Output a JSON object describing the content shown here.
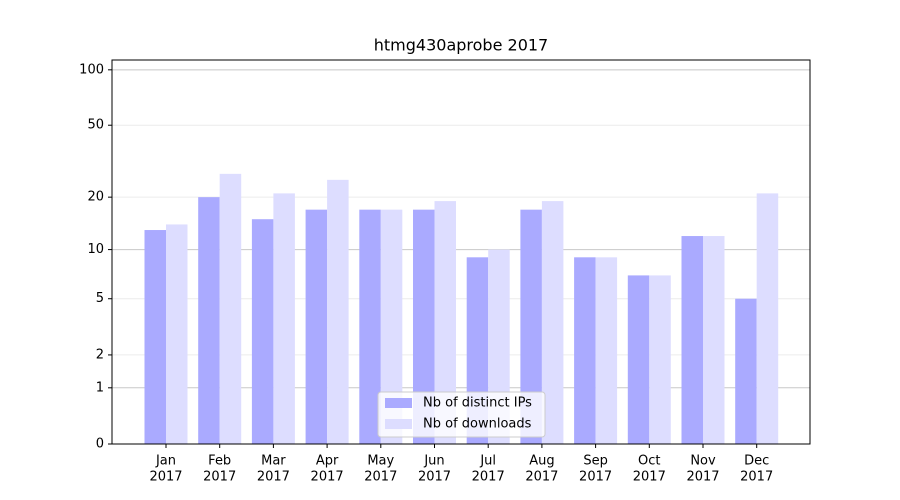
{
  "chart_data": {
    "type": "bar",
    "title": "htmg430aprobe 2017",
    "categories": [
      [
        "Jan",
        "2017"
      ],
      [
        "Feb",
        "2017"
      ],
      [
        "Mar",
        "2017"
      ],
      [
        "Apr",
        "2017"
      ],
      [
        "May",
        "2017"
      ],
      [
        "Jun",
        "2017"
      ],
      [
        "Jul",
        "2017"
      ],
      [
        "Aug",
        "2017"
      ],
      [
        "Sep",
        "2017"
      ],
      [
        "Oct",
        "2017"
      ],
      [
        "Nov",
        "2017"
      ],
      [
        "Dec",
        "2017"
      ]
    ],
    "series": [
      {
        "name": "Nb of distinct IPs",
        "color": "#aaaaff",
        "values": [
          13,
          20,
          15,
          17,
          17,
          17,
          9,
          17,
          9,
          7,
          12,
          5
        ]
      },
      {
        "name": "Nb of downloads",
        "color": "#ddddff",
        "values": [
          14,
          27,
          21,
          25,
          17,
          19,
          10,
          19,
          9,
          7,
          12,
          21
        ]
      }
    ],
    "scale": "log1p",
    "ylim": [
      0,
      113
    ],
    "yticks": [
      0,
      1,
      2,
      5,
      10,
      20,
      50,
      100
    ],
    "grid": true,
    "legend": "lower center"
  }
}
